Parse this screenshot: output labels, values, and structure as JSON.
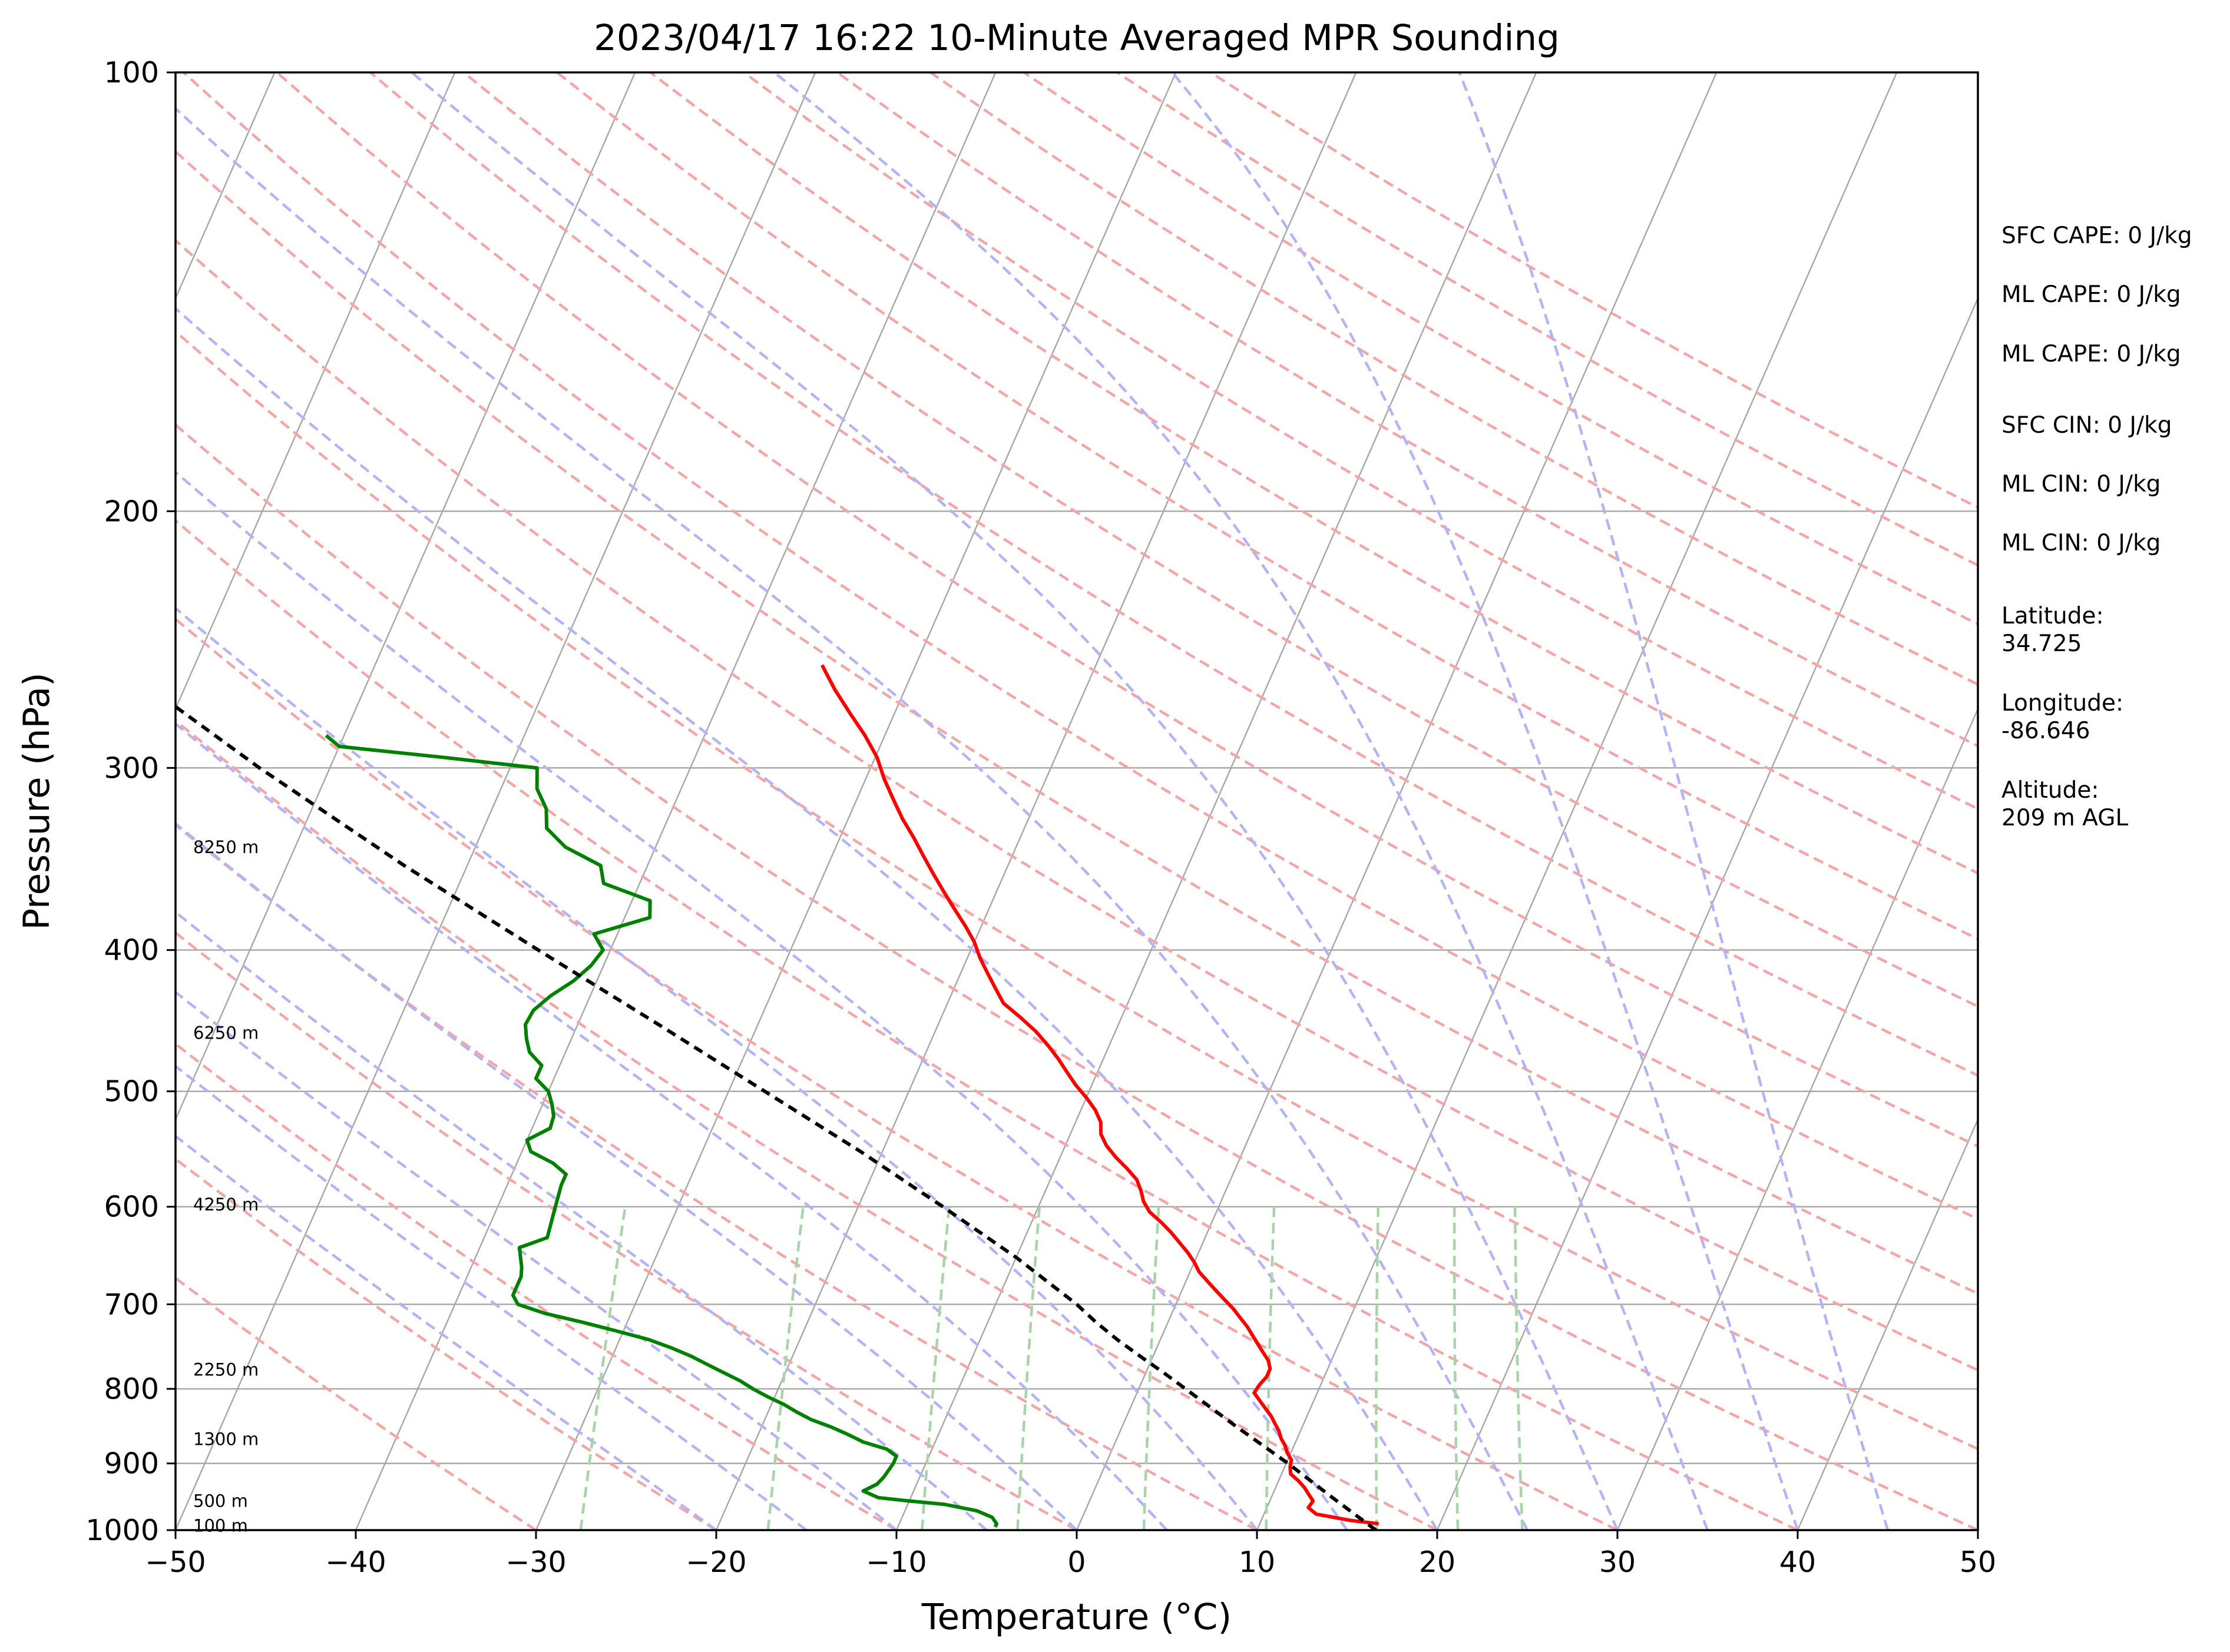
{
  "chart_data": {
    "type": "skew-t log-p",
    "title": "2023/04/17 16:22 10-Minute Averaged MPR Sounding",
    "xlabel": "Temperature (°C)",
    "ylabel": "Pressure (hPa)",
    "xlim": [
      -50,
      50
    ],
    "ylim": [
      1000,
      100
    ],
    "y_scale": "log",
    "x_ticks": [
      "−50",
      "−40",
      "−30",
      "−20",
      "−10",
      "0",
      "10",
      "20",
      "30",
      "40",
      "50"
    ],
    "y_ticks": [
      "100",
      "200",
      "300",
      "400",
      "500",
      "600",
      "700",
      "800",
      "900",
      "1000"
    ],
    "colors": {
      "temperature": "#ff0000",
      "dewpoint": "#008000",
      "parcel": "#000000",
      "isotherm": "#a6a6a6",
      "dry_adiabat": "#f4a5a5",
      "moist_adiabat": "#b3b3f5",
      "mixing_ratio": "#a8d4a8",
      "isobar": "#a6a6a6"
    },
    "height_labels": [
      {
        "text": "8250 m",
        "p": 340
      },
      {
        "text": "6250 m",
        "p": 456
      },
      {
        "text": "4250 m",
        "p": 598
      },
      {
        "text": "2250 m",
        "p": 776
      },
      {
        "text": "1300 m",
        "p": 866
      },
      {
        "text": "500 m",
        "p": 955
      },
      {
        "text": "100 m",
        "p": 993
      }
    ],
    "stats": [
      "SFC CAPE: 0 J/kg",
      "ML CAPE: 0 J/kg",
      "ML CAPE: 0 J/kg",
      "SFC CIN: 0 J/kg",
      "ML CIN: 0 J/kg",
      "ML CIN: 0 J/kg"
    ],
    "location": {
      "latitude_label": "Latitude:",
      "latitude": "34.725",
      "longitude_label": "Longitude:",
      "longitude": "-86.646",
      "altitude_label": "Altitude:",
      "altitude": "209 m AGL"
    },
    "series": [
      {
        "key": "temperature",
        "p": [
          990,
          985,
          975,
          965,
          955,
          945,
          935,
          925,
          915,
          905,
          895,
          885,
          875,
          865,
          855,
          845,
          835,
          825,
          815,
          805,
          795,
          785,
          775,
          765,
          755,
          745,
          735,
          725,
          715,
          705,
          695,
          685,
          675,
          665,
          655,
          645,
          635,
          625,
          615,
          605,
          595,
          585,
          575,
          565,
          555,
          545,
          535,
          525,
          515,
          505,
          495,
          485,
          475,
          465,
          455,
          445,
          435,
          425,
          415,
          405,
          395,
          385,
          375,
          365,
          355,
          345,
          335,
          325,
          315,
          305,
          295,
          285,
          275,
          265,
          255
        ],
        "t": [
          16.6,
          15.0,
          12.9,
          12.3,
          12.4,
          12.0,
          11.6,
          11.1,
          10.5,
          10.3,
          10.2,
          9.8,
          9.5,
          9.1,
          8.8,
          8.4,
          8.0,
          7.5,
          7.0,
          6.5,
          6.6,
          6.8,
          6.8,
          6.5,
          6.0,
          5.5,
          5.0,
          4.5,
          3.9,
          3.3,
          2.6,
          1.9,
          1.2,
          0.5,
          0.0,
          -0.6,
          -1.3,
          -2.0,
          -2.8,
          -3.7,
          -4.3,
          -4.7,
          -5.2,
          -6.0,
          -6.9,
          -7.7,
          -8.3,
          -8.6,
          -9.2,
          -10.0,
          -10.9,
          -11.7,
          -12.5,
          -13.4,
          -14.4,
          -15.6,
          -16.9,
          -17.7,
          -18.5,
          -19.3,
          -20.0,
          -20.9,
          -21.9,
          -22.9,
          -23.9,
          -24.9,
          -25.9,
          -27.0,
          -28.0,
          -29.0,
          -29.9,
          -31.1,
          -32.5,
          -33.9,
          -35.2
        ]
      },
      {
        "key": "dewpoint",
        "p": [
          995,
          990,
          980,
          970,
          960,
          955,
          950,
          940,
          930,
          920,
          910,
          900,
          890,
          880,
          870,
          860,
          850,
          840,
          830,
          820,
          810,
          800,
          790,
          780,
          770,
          760,
          750,
          740,
          730,
          720,
          710,
          700,
          690,
          680,
          670,
          660,
          650,
          640,
          630,
          620,
          610,
          600,
          590,
          580,
          570,
          560,
          550,
          540,
          530,
          520,
          510,
          500,
          490,
          480,
          470,
          460,
          450,
          440,
          430,
          420,
          410,
          400,
          390,
          380,
          370,
          360,
          350,
          340,
          330,
          320,
          310,
          300,
          295,
          290,
          285
        ],
        "t": [
          -4.6,
          -4.6,
          -5.0,
          -6.0,
          -8.0,
          -10.0,
          -11.8,
          -12.8,
          -12.2,
          -12.0,
          -11.9,
          -11.8,
          -11.8,
          -12.5,
          -14.0,
          -15.0,
          -16.1,
          -17.4,
          -18.4,
          -19.3,
          -20.4,
          -21.4,
          -22.3,
          -23.4,
          -24.5,
          -25.6,
          -26.9,
          -28.4,
          -30.4,
          -32.5,
          -34.8,
          -36.5,
          -37.0,
          -37.0,
          -37.0,
          -37.2,
          -37.5,
          -37.8,
          -36.5,
          -36.6,
          -36.7,
          -36.8,
          -36.9,
          -37.0,
          -37.0,
          -38.0,
          -39.5,
          -40.0,
          -39.0,
          -39.1,
          -39.5,
          -40.0,
          -41.0,
          -41.0,
          -42.0,
          -42.5,
          -42.9,
          -42.8,
          -42.2,
          -41.3,
          -40.7,
          -40.4,
          -41.3,
          -38.6,
          -39.0,
          -42.0,
          -42.6,
          -45.0,
          -46.5,
          -47.0,
          -48.0,
          -48.5,
          -54.0,
          -60.0,
          -61.0
        ]
      },
      {
        "key": "parcel",
        "p": [
          1000,
          950,
          900,
          850,
          800,
          780,
          760,
          740,
          720,
          700,
          650,
          600,
          550,
          500,
          450,
          400,
          350,
          300,
          260
        ],
        "t": [
          16.6,
          13.4,
          10.1,
          6.4,
          2.6,
          1.0,
          -0.7,
          -2.4,
          -4.0,
          -5.5,
          -10.0,
          -15.3,
          -21.2,
          -28.0,
          -35.5,
          -44.0,
          -53.5,
          -63.9,
          -73.0
        ]
      }
    ]
  }
}
